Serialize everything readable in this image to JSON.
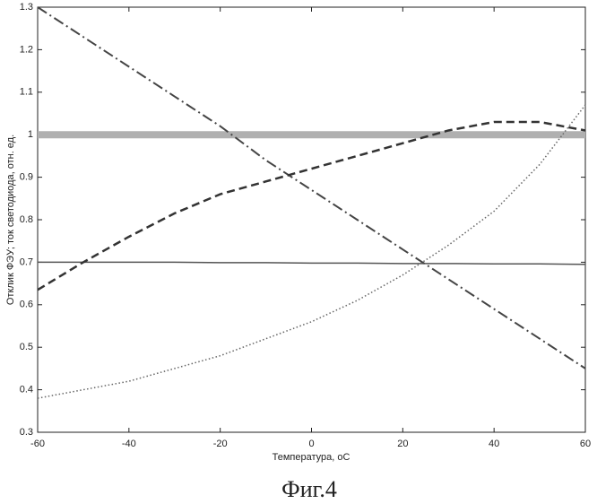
{
  "chart_data": {
    "type": "line",
    "xlabel": "Температура, oС",
    "ylabel": "Отклик ФЭУ; ток светодиода, отн. ед.",
    "caption": "Фиг.4",
    "x": [
      -60,
      -50,
      -40,
      -30,
      -20,
      -10,
      0,
      10,
      20,
      30,
      40,
      50,
      60
    ],
    "xlim": [
      -60,
      60
    ],
    "xticks": [
      -60,
      -40,
      -20,
      0,
      20,
      40,
      60
    ],
    "ylim": [
      0.3,
      1.3
    ],
    "yticks": [
      0.3,
      0.4,
      0.5,
      0.6,
      0.7,
      0.8,
      0.9,
      1,
      1.1,
      1.2,
      1.3
    ],
    "series": [
      {
        "color": "#b0b0b0",
        "dash": "solid",
        "width": 8,
        "values": [
          1,
          1,
          1,
          1,
          1,
          1,
          1,
          1,
          1,
          1,
          1,
          1,
          1
        ]
      },
      {
        "color": "#555555",
        "dash": "solid",
        "width": 1.5,
        "values": [
          0.7,
          0.7,
          0.7,
          0.7,
          0.699,
          0.699,
          0.698,
          0.698,
          0.697,
          0.697,
          0.696,
          0.696,
          0.695
        ]
      },
      {
        "color": "#444444",
        "dash": "dashdot",
        "width": 2,
        "values": [
          1.3,
          1.23,
          1.16,
          1.09,
          1.02,
          0.94,
          0.87,
          0.8,
          0.73,
          0.66,
          0.59,
          0.52,
          0.45
        ]
      },
      {
        "color": "#333333",
        "dash": "dashed",
        "width": 2.5,
        "values": [
          0.635,
          0.7,
          0.76,
          0.815,
          0.86,
          0.89,
          0.92,
          0.95,
          0.98,
          1.01,
          1.03,
          1.03,
          1.01
        ]
      },
      {
        "color": "#666666",
        "dash": "dotted",
        "width": 1.5,
        "values": [
          0.38,
          0.4,
          0.42,
          0.45,
          0.48,
          0.52,
          0.56,
          0.61,
          0.67,
          0.74,
          0.82,
          0.93,
          1.07
        ]
      }
    ]
  }
}
